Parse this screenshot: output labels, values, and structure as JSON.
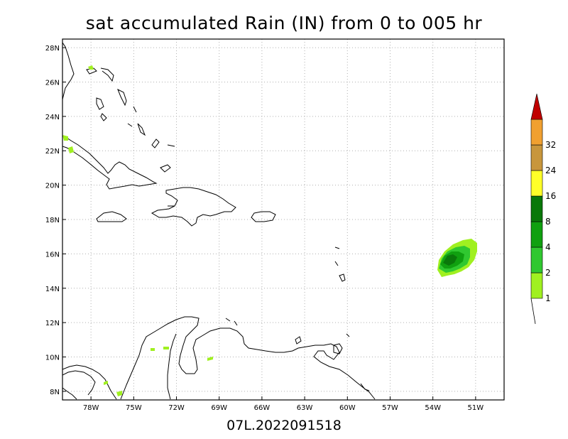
{
  "title": "sat accumulated Rain (IN) from 0 to 005 hr",
  "footer": "07L.2022091518",
  "map": {
    "lon_range": [
      -80.0,
      -49.0
    ],
    "lat_range": [
      7.5,
      28.5
    ],
    "grid": "dotted",
    "x_ticks": [
      {
        "lon": -78,
        "label": "78W"
      },
      {
        "lon": -75,
        "label": "75W"
      },
      {
        "lon": -72,
        "label": "72W"
      },
      {
        "lon": -69,
        "label": "69W"
      },
      {
        "lon": -66,
        "label": "66W"
      },
      {
        "lon": -63,
        "label": "63W"
      },
      {
        "lon": -60,
        "label": "60W"
      },
      {
        "lon": -57,
        "label": "57W"
      },
      {
        "lon": -54,
        "label": "54W"
      },
      {
        "lon": -51,
        "label": "51W"
      }
    ],
    "y_ticks": [
      {
        "lat": 8,
        "label": "8N"
      },
      {
        "lat": 10,
        "label": "10N"
      },
      {
        "lat": 12,
        "label": "12N"
      },
      {
        "lat": 14,
        "label": "14N"
      },
      {
        "lat": 16,
        "label": "16N"
      },
      {
        "lat": 18,
        "label": "18N"
      },
      {
        "lat": 20,
        "label": "20N"
      },
      {
        "lat": 22,
        "label": "22N"
      },
      {
        "lat": 24,
        "label": "24N"
      },
      {
        "lat": 26,
        "label": "26N"
      },
      {
        "lat": 28,
        "label": "28N"
      }
    ]
  },
  "colorbar": {
    "levels": [
      {
        "label": "1",
        "color": "#a0f020"
      },
      {
        "label": "2",
        "color": "#30c830"
      },
      {
        "label": "4",
        "color": "#10a010"
      },
      {
        "label": "8",
        "color": "#0a780a"
      },
      {
        "label": "16",
        "color": "#ffff28"
      },
      {
        "label": "24",
        "color": "#c8963c"
      },
      {
        "label": "32",
        "color": "#f0a030"
      }
    ],
    "top_color": "#c00000"
  },
  "colors": {
    "coast": "#000000",
    "grid": "#b0b0b0"
  }
}
